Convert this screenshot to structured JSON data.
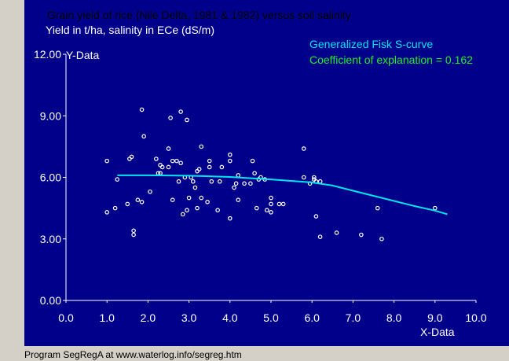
{
  "chart": {
    "title_line1": "Grain yield of rice (Nile Delta, 1981 & 1982) versus soil salinity",
    "title_line2": "Yield in t/ha, salinity in ECe (dS/m)",
    "legend_curve": "Generalized Fisk S-curve",
    "legend_coef": "Coefficient of explanation = 0.162",
    "footer": "Program SegRegA at www.waterlog.info/segreg.htm"
  },
  "colors": {
    "plot_background": "#00008b",
    "window_background": "#d4d0c8",
    "points": "#ffffff",
    "curve": "#00e5ee",
    "legend_curve": "#00e5ee",
    "legend_coef": "#22ee22"
  },
  "chart_data": {
    "type": "scatter",
    "title": "Grain yield of rice (Nile Delta, 1981 & 1982) versus soil salinity",
    "subtitle": "Yield in t/ha, salinity in ECe (dS/m)",
    "xlabel": "X-Data",
    "ylabel": "Y-Data",
    "xlim": [
      0,
      10
    ],
    "ylim": [
      0,
      12
    ],
    "x_ticks": [
      "0.0",
      "1.0",
      "2.0",
      "3.0",
      "4.0",
      "5.0",
      "6.0",
      "7.0",
      "8.0",
      "9.0",
      "10.0"
    ],
    "y_ticks": [
      "0.00",
      "3.00",
      "6.00",
      "9.00",
      "12.00"
    ],
    "grid": false,
    "legend": "top-right",
    "series": [
      {
        "name": "observations",
        "kind": "points",
        "points": [
          [
            1.0,
            6.8
          ],
          [
            1.0,
            4.3
          ],
          [
            1.2,
            4.5
          ],
          [
            1.25,
            5.9
          ],
          [
            1.5,
            4.7
          ],
          [
            1.55,
            6.9
          ],
          [
            1.6,
            7.0
          ],
          [
            1.65,
            3.4
          ],
          [
            1.65,
            3.2
          ],
          [
            1.75,
            4.9
          ],
          [
            1.85,
            4.8
          ],
          [
            1.85,
            9.3
          ],
          [
            1.9,
            8.0
          ],
          [
            2.05,
            5.3
          ],
          [
            2.2,
            6.9
          ],
          [
            2.25,
            6.2
          ],
          [
            2.3,
            6.6
          ],
          [
            2.3,
            6.2
          ],
          [
            2.35,
            6.5
          ],
          [
            2.5,
            7.4
          ],
          [
            2.5,
            6.5
          ],
          [
            2.55,
            8.9
          ],
          [
            2.6,
            4.9
          ],
          [
            2.6,
            6.8
          ],
          [
            2.7,
            6.8
          ],
          [
            2.75,
            5.8
          ],
          [
            2.8,
            9.2
          ],
          [
            2.8,
            6.7
          ],
          [
            2.85,
            4.2
          ],
          [
            2.9,
            6.0
          ],
          [
            2.95,
            8.8
          ],
          [
            2.95,
            4.4
          ],
          [
            3.0,
            5.0
          ],
          [
            3.05,
            6.0
          ],
          [
            3.1,
            5.8
          ],
          [
            3.15,
            5.5
          ],
          [
            3.2,
            6.3
          ],
          [
            3.2,
            4.5
          ],
          [
            3.25,
            6.4
          ],
          [
            3.3,
            7.5
          ],
          [
            3.3,
            5.0
          ],
          [
            3.45,
            4.8
          ],
          [
            3.5,
            6.5
          ],
          [
            3.5,
            6.8
          ],
          [
            3.55,
            5.8
          ],
          [
            3.7,
            4.4
          ],
          [
            3.75,
            5.8
          ],
          [
            3.8,
            6.5
          ],
          [
            4.0,
            7.1
          ],
          [
            4.0,
            6.8
          ],
          [
            4.0,
            4.0
          ],
          [
            4.1,
            5.5
          ],
          [
            4.15,
            5.7
          ],
          [
            4.2,
            6.1
          ],
          [
            4.2,
            4.9
          ],
          [
            4.35,
            5.7
          ],
          [
            4.5,
            5.7
          ],
          [
            4.55,
            6.8
          ],
          [
            4.6,
            6.2
          ],
          [
            4.65,
            4.5
          ],
          [
            4.7,
            5.9
          ],
          [
            4.75,
            6.0
          ],
          [
            4.85,
            5.9
          ],
          [
            4.9,
            4.4
          ],
          [
            5.0,
            5.0
          ],
          [
            5.0,
            4.7
          ],
          [
            5.0,
            4.3
          ],
          [
            5.2,
            4.7
          ],
          [
            5.3,
            4.7
          ],
          [
            5.8,
            7.4
          ],
          [
            5.8,
            6.0
          ],
          [
            5.95,
            5.7
          ],
          [
            6.05,
            5.9
          ],
          [
            6.05,
            6.0
          ],
          [
            6.1,
            5.8
          ],
          [
            6.1,
            4.1
          ],
          [
            6.2,
            3.1
          ],
          [
            6.2,
            5.8
          ],
          [
            6.6,
            3.3
          ],
          [
            7.2,
            3.2
          ],
          [
            7.6,
            4.5
          ],
          [
            7.7,
            3.0
          ],
          [
            9.0,
            4.5
          ]
        ]
      },
      {
        "name": "Generalized Fisk S-curve",
        "kind": "line",
        "points": [
          [
            1.25,
            6.1
          ],
          [
            2.0,
            6.1
          ],
          [
            3.0,
            6.08
          ],
          [
            4.0,
            6.02
          ],
          [
            5.0,
            5.9
          ],
          [
            6.0,
            5.75
          ],
          [
            6.5,
            5.6
          ],
          [
            7.0,
            5.35
          ],
          [
            7.5,
            5.1
          ],
          [
            8.0,
            4.85
          ],
          [
            8.5,
            4.6
          ],
          [
            9.0,
            4.38
          ],
          [
            9.3,
            4.2
          ]
        ]
      }
    ]
  }
}
